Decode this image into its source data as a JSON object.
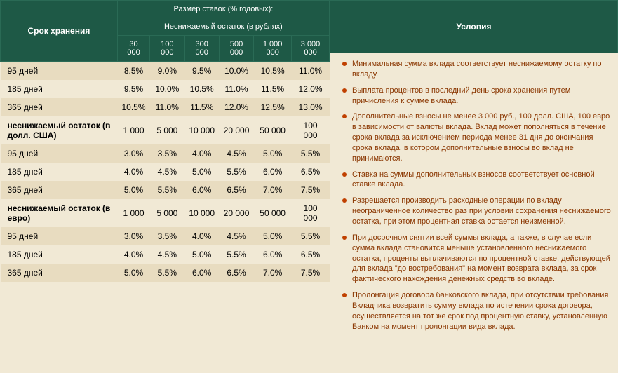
{
  "header": {
    "storage_term": "Срок хранения",
    "rates_title": "Размер ставок (% годовых):",
    "min_balance_rub": "Неснижаемый остаток (в рублях)",
    "conditions": "Условия"
  },
  "amounts": [
    "30 000",
    "100 000",
    "300 000",
    "500 000",
    "1 000 000",
    "3 000 000"
  ],
  "rows": [
    {
      "label": "95 дней",
      "vals": [
        "8.5%",
        "9.0%",
        "9.5%",
        "10.0%",
        "10.5%",
        "11.0%"
      ]
    },
    {
      "label": "185 дней",
      "vals": [
        "9.5%",
        "10.0%",
        "10.5%",
        "11.0%",
        "11.5%",
        "12.0%"
      ]
    },
    {
      "label": "365 дней",
      "vals": [
        "10.5%",
        "11.0%",
        "11.5%",
        "12.0%",
        "12.5%",
        "13.0%"
      ]
    },
    {
      "label": "неснижаемый остаток (в долл. США)",
      "group": true,
      "vals": [
        "1 000",
        "5 000",
        "10 000",
        "20 000",
        "50 000",
        "100 000"
      ]
    },
    {
      "label": "95 дней",
      "vals": [
        "3.0%",
        "3.5%",
        "4.0%",
        "4.5%",
        "5.0%",
        "5.5%"
      ]
    },
    {
      "label": "185 дней",
      "vals": [
        "4.0%",
        "4.5%",
        "5.0%",
        "5.5%",
        "6.0%",
        "6.5%"
      ]
    },
    {
      "label": "365 дней",
      "vals": [
        "5.0%",
        "5.5%",
        "6.0%",
        "6.5%",
        "7.0%",
        "7.5%"
      ]
    },
    {
      "label": "неснижаемый остаток (в евро)",
      "group": true,
      "vals": [
        "1 000",
        "5 000",
        "10 000",
        "20 000",
        "50 000",
        "100 000"
      ]
    },
    {
      "label": "95 дней",
      "vals": [
        "3.0%",
        "3.5%",
        "4.0%",
        "4.5%",
        "5.0%",
        "5.5%"
      ]
    },
    {
      "label": "185 дней",
      "vals": [
        "4.0%",
        "4.5%",
        "5.0%",
        "5.5%",
        "6.0%",
        "6.5%"
      ]
    },
    {
      "label": "365 дней",
      "vals": [
        "5.0%",
        "5.5%",
        "6.0%",
        "6.5%",
        "7.0%",
        "7.5%"
      ]
    }
  ],
  "conditions": [
    "Минимальная сумма вклада соответствует неснижаемому остатку по вкладу.",
    "Выплата процентов в последний день срока хранения путем причисления к сумме вклада.",
    "Дополнительные взносы не менее 3 000 руб., 100 долл. США, 100 евро в зависимости от валюты вклада. Вклад может пополняться в течение срока вклада за исключением периода менее 31 дня до окончания срока вклада, в котором дополнительные взносы во вклад не принимаются.",
    "Ставка на суммы дополнительных взносов соответствует основной ставке вклада.",
    "Разрешается производить расходные операции по вкладу неограниченное количество раз при условии сохранения неснижаемого остатка, при этом процентная ставка остается неизменной.",
    "При досрочном снятии всей суммы вклада, а также, в случае если сумма вклада становится меньше установленного неснижаемого остатка, проценты выплачиваются по процентной ставке, действующей для вклада \"до востребования\" на момент возврата вклада, за срок фактического нахождения денежных средств во вкладе.",
    "Пролонгация договора банковского вклада, при отсутствии требования Вкладчика возвратить сумму вклада по истечении срока договора, осуществляется на тот же срок под процентную ставку, установленную Банком на момент пролонгации вида вклада."
  ]
}
